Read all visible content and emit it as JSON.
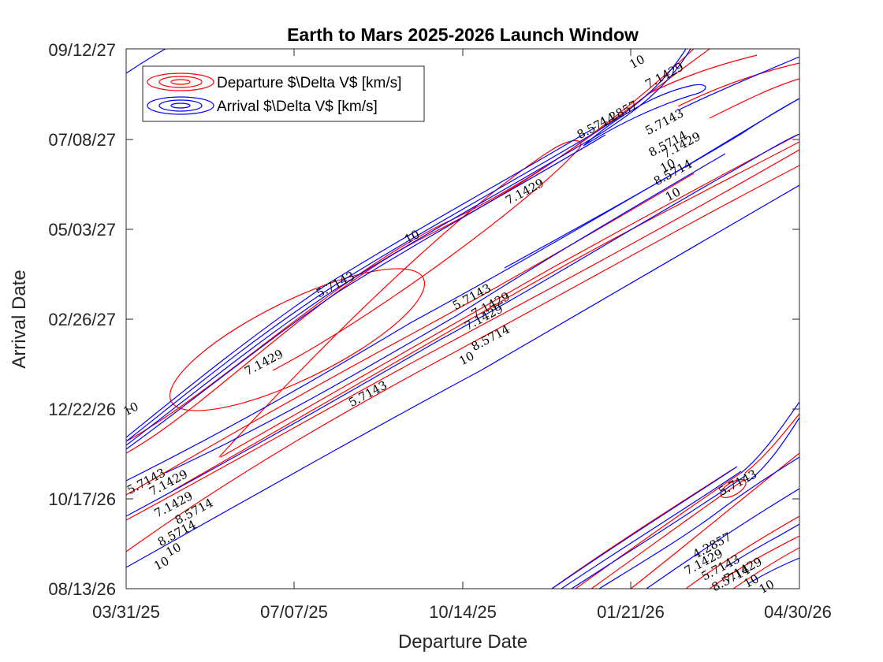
{
  "chart_data": {
    "type": "contour",
    "title": "Earth to Mars 2025-2026 Launch Window",
    "xlabel": "Departure Date",
    "ylabel": "Arrival Date",
    "xlim": [
      "2025-03-31",
      "2026-04-30"
    ],
    "ylim": [
      "2026-08-13",
      "2027-09-12"
    ],
    "x_ticks": [
      "03/31/25",
      "07/07/25",
      "10/14/25",
      "01/21/26",
      "04/30/26"
    ],
    "y_ticks": [
      "08/13/26",
      "10/17/26",
      "12/22/26",
      "02/26/27",
      "05/03/27",
      "07/08/27",
      "09/12/27"
    ],
    "contour_levels": [
      4.2857,
      5.7143,
      7.1429,
      8.5714,
      10
    ],
    "series": [
      {
        "name": "Departure $\\Delta V$ [km/s]",
        "color": "#ff0000"
      },
      {
        "name": "Arrival $\\Delta V$ [km/s]",
        "color": "#0000ff"
      }
    ],
    "legend": {
      "location": "top-left"
    },
    "grid": false,
    "contour_labels": [
      {
        "text": "5.7143",
        "x": "2025-08-20",
        "y": "2027-01-02"
      },
      {
        "text": "7.1429",
        "x": "2025-06-20",
        "y": "2027-01-25"
      },
      {
        "text": "10",
        "x": "2025-04-03",
        "y": "2026-12-22"
      },
      {
        "text": "5.7143",
        "x": "2025-10-20",
        "y": "2027-03-14"
      },
      {
        "text": "7.1429",
        "x": "2025-10-31",
        "y": "2027-03-08"
      },
      {
        "text": "7.1429",
        "x": "2025-10-27",
        "y": "2027-02-27"
      },
      {
        "text": "8.5714",
        "x": "2025-10-31",
        "y": "2027-02-12"
      },
      {
        "text": "10",
        "x": "2025-10-17",
        "y": "2027-01-28"
      },
      {
        "text": "5.7143",
        "x": "2025-08-01",
        "y": "2027-03-23"
      },
      {
        "text": "10",
        "x": "2025-09-15",
        "y": "2027-04-27"
      },
      {
        "text": "7.1429",
        "x": "2025-11-20",
        "y": "2027-05-30"
      },
      {
        "text": "8.5714",
        "x": "2026-01-01",
        "y": "2027-07-17"
      },
      {
        "text": "4.2857",
        "x": "2026-01-14",
        "y": "2027-07-26"
      },
      {
        "text": "10",
        "x": "2026-01-25",
        "y": "2027-09-02"
      },
      {
        "text": "7.1429",
        "x": "2026-02-10",
        "y": "2027-08-23"
      },
      {
        "text": "5.7143",
        "x": "2026-02-10",
        "y": "2027-07-20"
      },
      {
        "text": "8.5714",
        "x": "2026-02-12",
        "y": "2027-07-04"
      },
      {
        "text": "7.1429",
        "x": "2026-02-20",
        "y": "2027-07-03"
      },
      {
        "text": "10",
        "x": "2026-02-12",
        "y": "2027-06-18"
      },
      {
        "text": "8.5714",
        "x": "2026-02-15",
        "y": "2027-06-13"
      },
      {
        "text": "10",
        "x": "2026-02-15",
        "y": "2027-05-28"
      },
      {
        "text": "5.7143",
        "x": "2025-04-12",
        "y": "2026-10-30"
      },
      {
        "text": "7.1429",
        "x": "2025-04-25",
        "y": "2026-10-29"
      },
      {
        "text": "7.1429",
        "x": "2025-04-28",
        "y": "2026-10-13"
      },
      {
        "text": "8.5714",
        "x": "2025-05-10",
        "y": "2026-10-08"
      },
      {
        "text": "8.5714",
        "x": "2025-04-30",
        "y": "2026-09-22"
      },
      {
        "text": "10",
        "x": "2025-04-28",
        "y": "2026-09-10"
      },
      {
        "text": "10",
        "x": "2025-04-21",
        "y": "2026-08-31"
      },
      {
        "text": "5.7143",
        "x": "2026-03-25",
        "y": "2026-10-29"
      },
      {
        "text": "4.2857",
        "x": "2026-03-10",
        "y": "2026-09-13"
      },
      {
        "text": "7.1429",
        "x": "2026-03-05",
        "y": "2026-09-01"
      },
      {
        "text": "5.7143",
        "x": "2026-03-15",
        "y": "2026-08-28"
      },
      {
        "text": "7.1429",
        "x": "2026-03-28",
        "y": "2026-08-26"
      },
      {
        "text": "8.5714",
        "x": "2026-03-21",
        "y": "2026-08-20"
      },
      {
        "text": "10",
        "x": "2026-04-02",
        "y": "2026-08-18"
      },
      {
        "text": "10",
        "x": "2026-04-11",
        "y": "2026-08-14"
      }
    ]
  }
}
